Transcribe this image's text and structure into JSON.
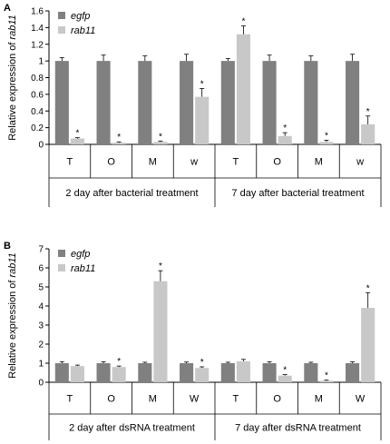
{
  "chart_data": [
    {
      "type": "bar",
      "panel_label": "A",
      "ylabel": "Relative expression of rab11",
      "ylim": [
        0,
        1.6
      ],
      "yticks": [
        "0",
        "0.2",
        "0.4",
        "0.6",
        "0.8",
        "1",
        "1.2",
        "1.4",
        "1.6"
      ],
      "categories": [
        "T",
        "O",
        "M",
        "w",
        "T",
        "O",
        "M",
        "w"
      ],
      "groups": [
        "2 day after bacterial treatment",
        "7 day after bacterial treatment"
      ],
      "legend_position": "top-left",
      "series": [
        {
          "name": "egfp",
          "color": "#808080",
          "values": [
            1,
            1,
            1,
            1,
            1,
            1,
            1,
            1
          ],
          "errors": [
            0.04,
            0.07,
            0.06,
            0.08,
            0.03,
            0.07,
            0.06,
            0.08
          ]
        },
        {
          "name": "rab11",
          "color": "#c8c8c8",
          "values": [
            0.07,
            0.02,
            0.03,
            0.57,
            1.32,
            0.1,
            0.03,
            0.24
          ],
          "errors": [
            0.01,
            0.01,
            0.01,
            0.1,
            0.1,
            0.04,
            0.02,
            0.1
          ]
        }
      ],
      "significance": [
        "*",
        "*",
        "*",
        "*",
        "*",
        "*",
        "*",
        "*"
      ]
    },
    {
      "type": "bar",
      "panel_label": "B",
      "ylabel": "Relative expression of rab11",
      "ylim": [
        0,
        7
      ],
      "yticks": [
        "0",
        "1",
        "2",
        "3",
        "4",
        "5",
        "6",
        "7"
      ],
      "categories": [
        "T",
        "O",
        "M",
        "W",
        "T",
        "O",
        "M",
        "W"
      ],
      "groups": [
        "2 day after dsRNA treatment",
        "7 day after dsRNA treatment"
      ],
      "legend_position": "top-left",
      "series": [
        {
          "name": "egfp",
          "color": "#808080",
          "values": [
            1,
            1,
            1,
            1,
            1,
            1,
            1,
            1
          ],
          "errors": [
            0.08,
            0.07,
            0.05,
            0.06,
            0.05,
            0.07,
            0.05,
            0.07
          ]
        },
        {
          "name": "rab11",
          "color": "#c8c8c8",
          "values": [
            0.85,
            0.8,
            5.3,
            0.75,
            1.1,
            0.35,
            0.08,
            3.9
          ],
          "errors": [
            0.05,
            0.05,
            0.55,
            0.06,
            0.1,
            0.05,
            0.03,
            0.8
          ]
        }
      ],
      "significance": [
        "",
        "*",
        "*",
        "*",
        "",
        "*",
        "*",
        "*"
      ]
    }
  ]
}
